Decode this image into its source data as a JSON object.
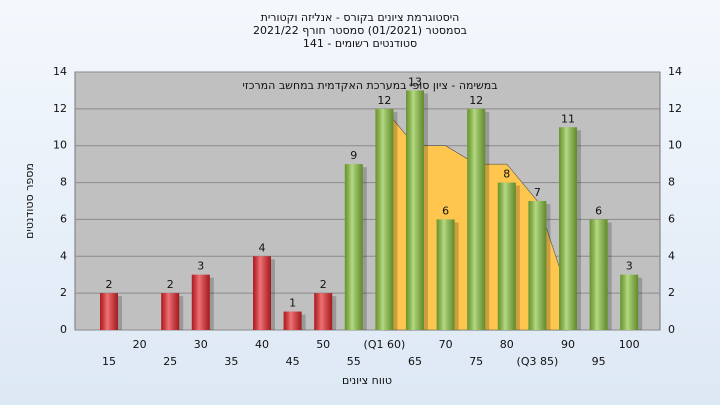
{
  "chart_data": {
    "type": "bar",
    "title_lines": [
      "היסטוגרמת ציונים בקורס - אנליזה וקטורית",
      "בסמסטר  (01/2021)  סמסטר חורף  2021/22",
      "סטודנטים רשומים - 141"
    ],
    "annotation": "במשימה - ציון סופי במערכת האקדמית במחשב המרכזי",
    "x_label": "טווח ציונים",
    "y_label": "מספר סטודנטים",
    "categories": [
      "15",
      "20",
      "25",
      "30",
      "35",
      "40",
      "45",
      "50",
      "55",
      "(Q1 60)",
      "65",
      "70",
      "75",
      "80",
      "(Q3 85)",
      "90",
      "95",
      "100"
    ],
    "values": [
      2,
      0,
      2,
      3,
      0,
      4,
      1,
      2,
      9,
      12,
      13,
      6,
      12,
      8,
      7,
      11,
      6,
      3
    ],
    "colors": [
      "#e8262b",
      "#e8262b",
      "#e8262b",
      "#e8262b",
      "#e8262b",
      "#e8262b",
      "#e8262b",
      "#e8262b",
      "#8cc63f",
      "#8cc63f",
      "#8cc63f",
      "#8cc63f",
      "#8cc63f",
      "#8cc63f",
      "#8cc63f",
      "#8cc63f",
      "#8cc63f",
      "#8cc63f"
    ],
    "area": {
      "color": "#ffc64f",
      "values": [
        null,
        null,
        null,
        null,
        null,
        null,
        null,
        null,
        null,
        12,
        10,
        10,
        9,
        9,
        7,
        2,
        null,
        null
      ]
    },
    "ylim": [
      0,
      14
    ],
    "yticks": [
      0,
      2,
      4,
      6,
      8,
      10,
      12,
      14
    ],
    "grid": true
  }
}
